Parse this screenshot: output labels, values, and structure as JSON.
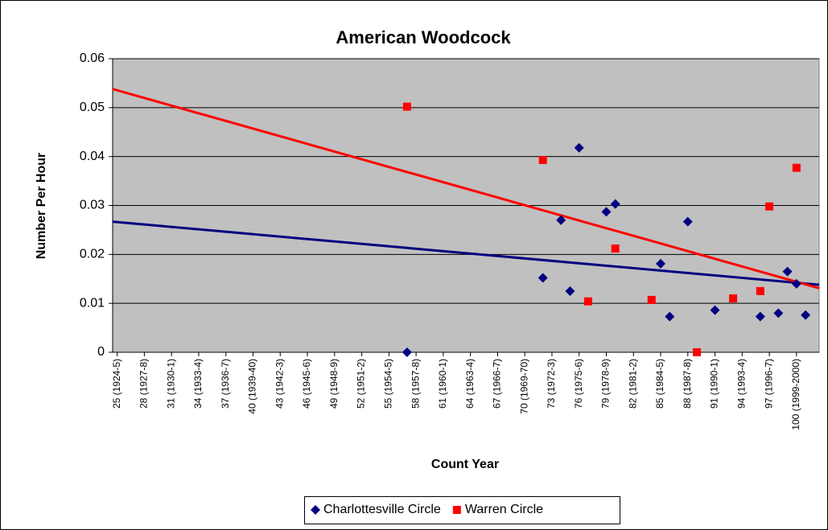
{
  "chart_data": {
    "type": "scatter",
    "title": "American Woodcock",
    "x_label": "Count Year",
    "y_label": "Number Per Hour",
    "categories": [
      "25 (1924-5)",
      null,
      null,
      "28 (1927-8)",
      null,
      null,
      "31 (1930-1)",
      null,
      null,
      "34 (1933-4)",
      null,
      null,
      "37 (1936-7)",
      null,
      null,
      "40 (1939-40)",
      null,
      null,
      "43 (1942-3)",
      null,
      null,
      "46 (1945-6)",
      null,
      null,
      "49 (1948-9)",
      null,
      null,
      "52 (1951-2)",
      null,
      null,
      "55 (1954-5)",
      null,
      null,
      "58 (1957-8)",
      null,
      null,
      "61 (1960-1)",
      null,
      null,
      "64 (1963-4)",
      null,
      null,
      "67 (1966-7)",
      null,
      null,
      "70 (1969-70)",
      null,
      null,
      "73 (1972-3)",
      null,
      null,
      "76 (1975-6)",
      null,
      null,
      "79 (1978-9)",
      null,
      null,
      "82 (1981-2)",
      null,
      null,
      "85 (1984-5)",
      null,
      null,
      "88 (1987-8)",
      null,
      null,
      "91 (1990-1)",
      null,
      null,
      "94 (1993-4)",
      null,
      null,
      "97 (1996-7)",
      null,
      null,
      "100 (1999-2000)",
      null,
      null
    ],
    "series": [
      {
        "name": "Charlottesville Circle",
        "color": "#000080",
        "marker": "diamond",
        "trend": [
          0.0267,
          0.0138
        ],
        "values": [
          null,
          null,
          null,
          null,
          null,
          null,
          null,
          null,
          null,
          null,
          null,
          null,
          null,
          null,
          null,
          null,
          null,
          null,
          null,
          null,
          null,
          null,
          null,
          null,
          null,
          null,
          null,
          null,
          null,
          null,
          null,
          null,
          0,
          null,
          null,
          null,
          null,
          null,
          null,
          null,
          null,
          null,
          null,
          null,
          null,
          null,
          null,
          0.0152,
          null,
          0.027,
          0.0125,
          0.0418,
          null,
          null,
          0.0287,
          0.0303,
          null,
          null,
          null,
          null,
          0.0181,
          0.0073,
          null,
          0.0267,
          null,
          null,
          0.0086,
          null,
          null,
          null,
          null,
          0.0073,
          null,
          0.008,
          0.0165,
          0.014,
          0.0076,
          null
        ]
      },
      {
        "name": "Warren Circle",
        "color": "#ff0000",
        "marker": "square",
        "trend": [
          0.0538,
          0.0131
        ],
        "values": [
          null,
          null,
          null,
          null,
          null,
          null,
          null,
          null,
          null,
          null,
          null,
          null,
          null,
          null,
          null,
          null,
          null,
          null,
          null,
          null,
          null,
          null,
          null,
          null,
          null,
          null,
          null,
          null,
          null,
          null,
          null,
          null,
          0.0502,
          null,
          null,
          null,
          null,
          null,
          null,
          null,
          null,
          null,
          null,
          null,
          null,
          null,
          null,
          0.0393,
          null,
          null,
          null,
          null,
          0.0104,
          null,
          null,
          0.0212,
          null,
          null,
          null,
          0.0107,
          null,
          null,
          null,
          null,
          0,
          null,
          null,
          null,
          0.011,
          null,
          null,
          0.0125,
          0.0298,
          null,
          null,
          0.0377,
          null,
          null
        ]
      }
    ],
    "ylim": [
      0,
      0.06
    ],
    "yticks": [
      0,
      0.01,
      0.02,
      0.03,
      0.04,
      0.05,
      0.06
    ],
    "grid": true,
    "plot_background": "#c0c0c0",
    "legend": "bottom"
  }
}
